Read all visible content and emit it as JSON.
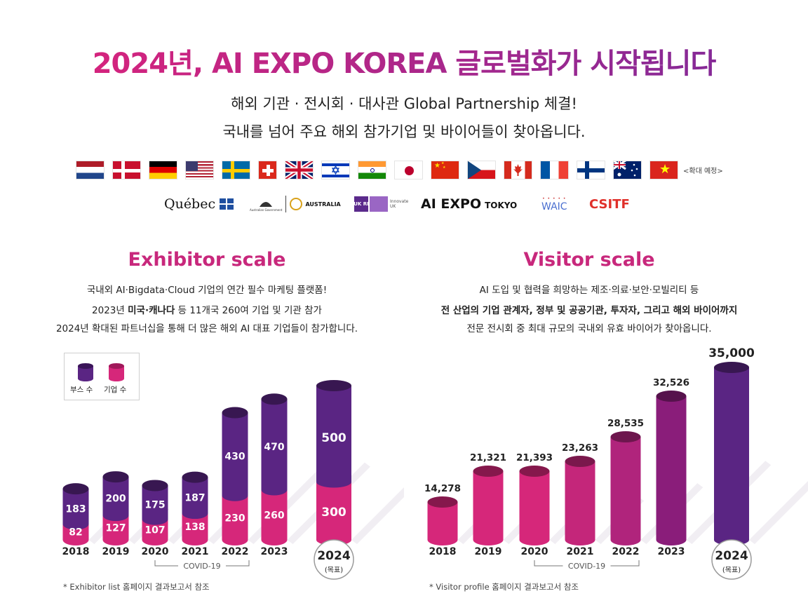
{
  "header": {
    "title": "2024년, AI EXPO KOREA 글로벌화가 시작됩니다",
    "subtitle1": "해외 기관 · 전시회 · 대사관 Global Partnership 체결!",
    "subtitle2": "국내를 넘어 주요 해외 참가기업 및 바이어들이 찾아옵니다."
  },
  "flags": [
    "netherlands-flag",
    "denmark-flag",
    "germany-flag",
    "usa-flag",
    "sweden-flag",
    "switzerland-flag",
    "uk-flag",
    "israel-flag",
    "india-flag",
    "japan-flag",
    "china-flag",
    "czech-flag",
    "canada-flag",
    "france-flag",
    "finland-flag",
    "australia-flag",
    "vietnam-flag"
  ],
  "flag_note": "<확대 예정>",
  "partners": {
    "quebec": "Québec",
    "australia_gov": "Australian Government",
    "australia": "AUSTRALIA",
    "uk_logo": "UK RI",
    "innovate": "Innovate UK",
    "ai_expo": "AI EXPO",
    "tokyo": "TOKYO",
    "waic": "WAIC",
    "csitf": "CSITF"
  },
  "exhibitor": {
    "title": "Exhibitor scale",
    "desc1": "국내외 AI·Bigdata·Cloud 기업의 연간 필수 마케팅 플랫폼!",
    "desc2_a": "2023년 ",
    "desc2_b": "미국·캐나다",
    "desc2_c": " 등 11개국 260여 기업 및 기관 참가",
    "desc3": "2024년 확대된 파트너십을 통해 더 많은 해외 AI 대표 기업들이 참가합니다.",
    "legend_booth": "부스 수",
    "legend_company": "기업 수",
    "covid": "COVID-19",
    "target": "(목표)",
    "note": "* Exhibitor list 홈페이지 결과보고서 참조"
  },
  "visitor": {
    "title": "Visitor scale",
    "desc1": "AI 도입 및 협력을 희망하는 제조·의료·보안·모빌리티 등",
    "desc2": "전 산업의 기업 관계자, 정부 및 공공기관, 투자자, 그리고 해외 바이어까지",
    "desc3": "전문 전시회 중 최대 규모의 국내외 유효 바이어가 찾아옵니다.",
    "covid": "COVID-19",
    "target": "(목표)",
    "note": "* Visitor profile 홈페이지 결과보고서 참조"
  },
  "colors": {
    "pink": "#d6277a",
    "purple": "#5a2583",
    "magenta": "#8a1d7a"
  },
  "chart_data": [
    {
      "type": "bar",
      "stacked": true,
      "title": "Exhibitor scale",
      "categories": [
        "2018",
        "2019",
        "2020",
        "2021",
        "2022",
        "2023",
        "2024"
      ],
      "series": [
        {
          "name": "기업 수",
          "values": [
            82,
            127,
            107,
            138,
            230,
            260,
            300
          ],
          "color": "#d6277a"
        },
        {
          "name": "부스 수",
          "values": [
            183,
            200,
            175,
            187,
            430,
            470,
            500
          ],
          "color": "#5a2583"
        }
      ],
      "value_labels": {
        "기업 수": [
          "82",
          "127",
          "107",
          "138",
          "230",
          "260",
          "300"
        ],
        "부스 수": [
          "183",
          "200",
          "175",
          "187",
          "430",
          "470",
          "500"
        ]
      },
      "ylim": [
        0,
        800
      ],
      "legend": "top-left",
      "grid": false
    },
    {
      "type": "bar",
      "title": "Visitor scale",
      "categories": [
        "2018",
        "2019",
        "2020",
        "2021",
        "2022",
        "2023",
        "2024"
      ],
      "values": [
        14278,
        21321,
        21393,
        23263,
        28535,
        32526,
        35000
      ],
      "value_labels": [
        "14,278",
        "21,321",
        "21,393",
        "23,263",
        "28,535",
        "32,526",
        "35,000"
      ],
      "ylim": [
        0,
        35000
      ],
      "grid": false
    }
  ]
}
